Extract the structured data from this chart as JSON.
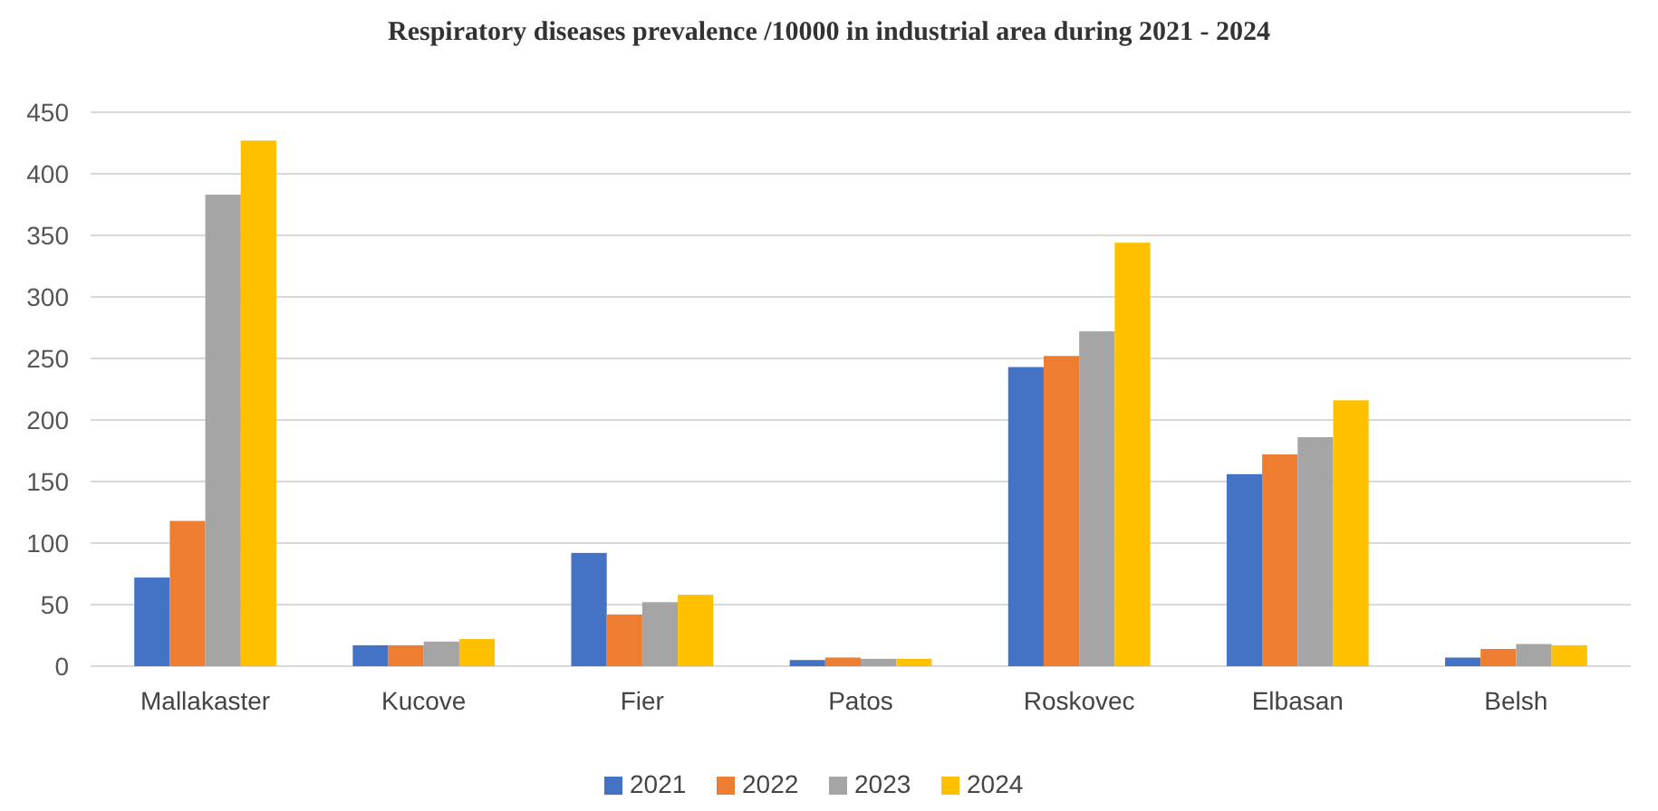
{
  "chart_data": {
    "type": "bar",
    "title": "Respiratory diseases prevalence /10000 in industrial area during 2021 - 2024",
    "categories": [
      "Mallakaster",
      "Kucove",
      "Fier",
      "Patos",
      "Roskovec",
      "Elbasan",
      "Belsh"
    ],
    "series": [
      {
        "name": "2021",
        "color": "#4472c4",
        "values": [
          72,
          17,
          92,
          5,
          243,
          156,
          7
        ]
      },
      {
        "name": "2022",
        "color": "#ed7d31",
        "values": [
          118,
          17,
          42,
          7,
          252,
          172,
          14
        ]
      },
      {
        "name": "2023",
        "color": "#a5a5a5",
        "values": [
          383,
          20,
          52,
          6,
          272,
          186,
          18
        ]
      },
      {
        "name": "2024",
        "color": "#ffc000",
        "values": [
          427,
          22,
          58,
          6,
          344,
          216,
          17
        ]
      }
    ],
    "ylim": [
      0,
      450
    ],
    "yticks": [
      0,
      50,
      100,
      150,
      200,
      250,
      300,
      350,
      400,
      450
    ],
    "grid": "y",
    "legend": "bottom"
  }
}
